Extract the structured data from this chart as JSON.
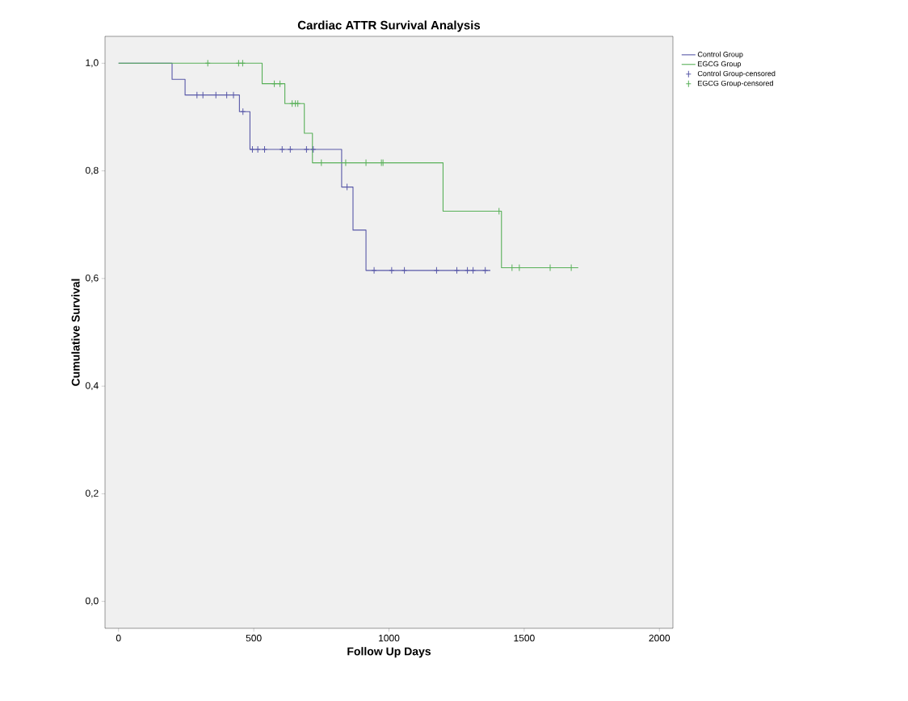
{
  "chart_data": {
    "type": "step",
    "title": "Cardiac ATTR Survival Analysis",
    "xlabel": "Follow Up Days",
    "ylabel": "Cumulative Survival",
    "xlim": [
      -50,
      2050
    ],
    "ylim": [
      -0.05,
      1.05
    ],
    "xticks": [
      0,
      500,
      1000,
      1500,
      2000
    ],
    "yticks": [
      {
        "value": 0,
        "label": "0,0"
      },
      {
        "value": 0.2,
        "label": "0,2"
      },
      {
        "value": 0.4,
        "label": "0,4"
      },
      {
        "value": 0.6,
        "label": "0,6"
      },
      {
        "value": 0.8,
        "label": "0,8"
      },
      {
        "value": 1,
        "label": "1,0"
      }
    ],
    "grid": false,
    "legend": "right",
    "series": [
      {
        "name": "Control Group",
        "color": "#5858a8",
        "x": [
          0,
          198,
          246,
          447,
          486,
          825,
          867,
          915,
          1375
        ],
        "values": [
          1.0,
          0.97,
          0.941,
          0.91,
          0.84,
          0.77,
          0.69,
          0.615,
          0.615
        ]
      },
      {
        "name": "EGCG Group",
        "color": "#58b058",
        "x": [
          0,
          531,
          615,
          687,
          717,
          1200,
          1416,
          1700
        ],
        "values": [
          1.0,
          0.962,
          0.925,
          0.87,
          0.815,
          0.725,
          0.62,
          0.62
        ]
      },
      {
        "name": "Control Group-censored",
        "type": "scatter",
        "marker": "cross",
        "color": "#5858a8",
        "x": [
          290,
          312,
          360,
          400,
          425,
          460,
          495,
          515,
          540,
          605,
          635,
          695,
          720,
          845,
          945,
          1010,
          1057,
          1176,
          1251,
          1290,
          1311,
          1356
        ],
        "values": [
          0.941,
          0.941,
          0.941,
          0.941,
          0.941,
          0.91,
          0.84,
          0.84,
          0.84,
          0.84,
          0.84,
          0.84,
          0.84,
          0.77,
          0.615,
          0.615,
          0.615,
          0.615,
          0.615,
          0.615,
          0.615,
          0.615
        ]
      },
      {
        "name": "EGCG Group-censored",
        "type": "scatter",
        "marker": "cross",
        "color": "#58b058",
        "x": [
          330,
          444,
          459,
          576,
          597,
          642,
          654,
          663,
          750,
          840,
          915,
          972,
          978,
          1407,
          1455,
          1482,
          1596,
          1674
        ],
        "values": [
          1.0,
          1.0,
          1.0,
          0.962,
          0.962,
          0.925,
          0.925,
          0.925,
          0.815,
          0.815,
          0.815,
          0.815,
          0.815,
          0.725,
          0.62,
          0.62,
          0.62,
          0.62
        ]
      }
    ]
  }
}
